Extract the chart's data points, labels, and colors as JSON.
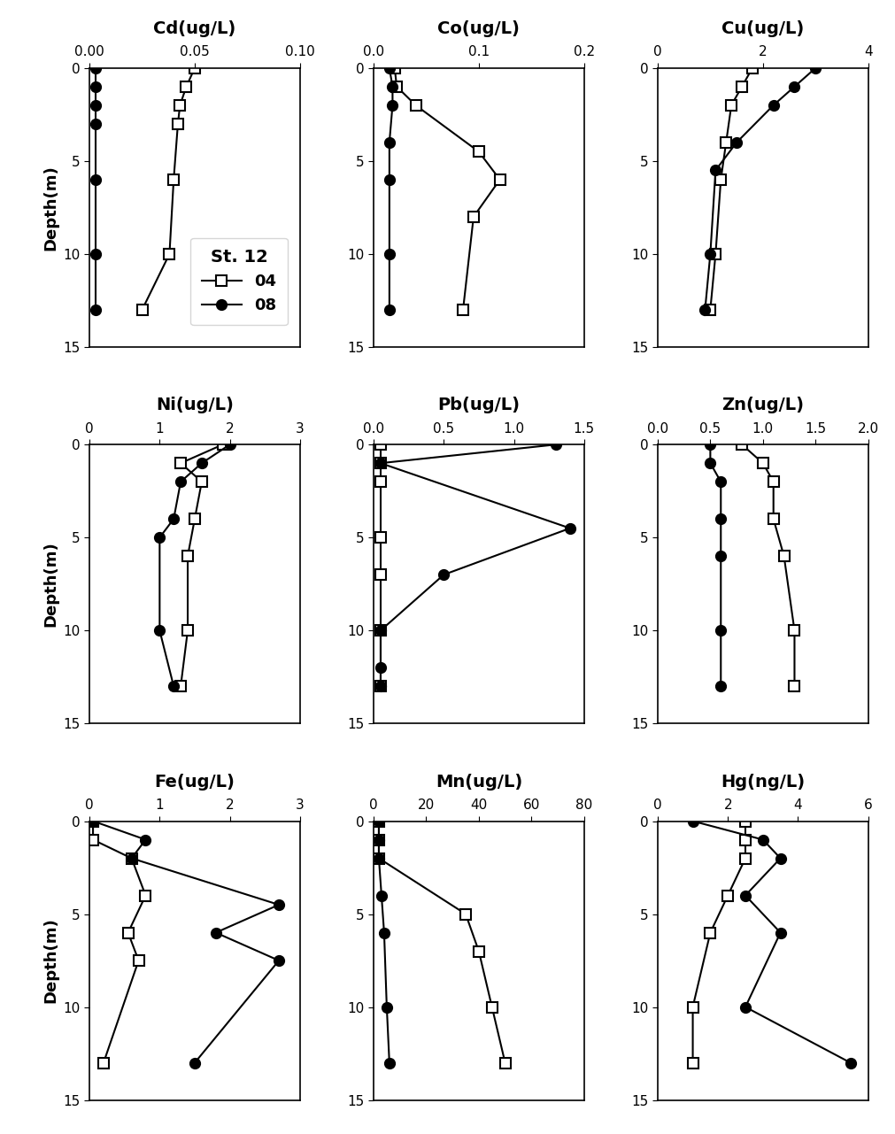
{
  "panels": [
    {
      "title": "Cd(ug/L)",
      "xlim": [
        0.0,
        0.1
      ],
      "xticks": [
        0.0,
        0.05,
        0.1
      ],
      "xticklabels": [
        "0.00",
        "0.05",
        "0.10"
      ],
      "series04": {
        "x": [
          0.05,
          0.046,
          0.043,
          0.042,
          0.04,
          0.038,
          0.025
        ],
        "y": [
          0,
          1,
          2,
          3,
          6,
          10,
          13
        ]
      },
      "series08": {
        "x": [
          0.003,
          0.003,
          0.003,
          0.003,
          0.003,
          0.003,
          0.003
        ],
        "y": [
          0,
          1,
          2,
          3,
          6,
          10,
          13
        ]
      },
      "show_legend": true
    },
    {
      "title": "Co(ug/L)",
      "xlim": [
        0.0,
        0.2
      ],
      "xticks": [
        0.0,
        0.1,
        0.2
      ],
      "xticklabels": [
        "0.0",
        "0.1",
        "0.2"
      ],
      "series04": {
        "x": [
          0.02,
          0.022,
          0.04,
          0.1,
          0.12,
          0.095,
          0.085
        ],
        "y": [
          0,
          1,
          2,
          4.5,
          6,
          8,
          13
        ]
      },
      "series08": {
        "x": [
          0.015,
          0.018,
          0.018,
          0.015,
          0.015,
          0.015,
          0.015
        ],
        "y": [
          0,
          1,
          2,
          4,
          6,
          10,
          13
        ]
      },
      "show_legend": false
    },
    {
      "title": "Cu(ug/L)",
      "xlim": [
        0,
        4
      ],
      "xticks": [
        0,
        2,
        4
      ],
      "xticklabels": [
        "0",
        "2",
        "4"
      ],
      "series04": {
        "x": [
          1.8,
          1.6,
          1.4,
          1.3,
          1.2,
          1.1,
          1.0
        ],
        "y": [
          0,
          1,
          2,
          4,
          6,
          10,
          13
        ]
      },
      "series08": {
        "x": [
          3.0,
          2.6,
          2.2,
          1.5,
          1.1,
          1.0,
          0.9
        ],
        "y": [
          0,
          1,
          2,
          4,
          5.5,
          10,
          13
        ]
      },
      "show_legend": false
    },
    {
      "title": "Ni(ug/L)",
      "xlim": [
        0,
        3
      ],
      "xticks": [
        0,
        1,
        2,
        3
      ],
      "xticklabels": [
        "0",
        "1",
        "2",
        "3"
      ],
      "series04": {
        "x": [
          1.9,
          1.3,
          1.6,
          1.5,
          1.4,
          1.4,
          1.3
        ],
        "y": [
          0,
          1,
          2,
          4,
          6,
          10,
          13
        ]
      },
      "series08": {
        "x": [
          2.0,
          1.6,
          1.3,
          1.2,
          1.0,
          1.0,
          1.2
        ],
        "y": [
          0,
          1,
          2,
          4,
          5,
          10,
          13
        ]
      },
      "show_legend": false
    },
    {
      "title": "Pb(ug/L)",
      "xlim": [
        0.0,
        1.5
      ],
      "xticks": [
        0.0,
        0.5,
        1.0,
        1.5
      ],
      "xticklabels": [
        "0.0",
        "0.5",
        "1.0",
        "1.5"
      ],
      "series04": {
        "x": [
          0.05,
          0.05,
          0.05,
          0.05,
          0.05,
          0.05,
          0.05
        ],
        "y": [
          0,
          1,
          2,
          5,
          7,
          10,
          13
        ]
      },
      "series08": {
        "x": [
          1.3,
          0.05,
          1.4,
          0.5,
          0.05,
          0.05,
          0.05
        ],
        "y": [
          0,
          1,
          4.5,
          7,
          10,
          12,
          13
        ]
      },
      "show_legend": false
    },
    {
      "title": "Zn(ug/L)",
      "xlim": [
        0.0,
        2.0
      ],
      "xticks": [
        0.0,
        0.5,
        1.0,
        1.5,
        2.0
      ],
      "xticklabels": [
        "0.0",
        "0.5",
        "1.0",
        "1.5",
        "2.0"
      ],
      "series04": {
        "x": [
          0.8,
          1.0,
          1.1,
          1.1,
          1.2,
          1.3,
          1.3
        ],
        "y": [
          0,
          1,
          2,
          4,
          6,
          10,
          13
        ]
      },
      "series08": {
        "x": [
          0.5,
          0.5,
          0.6,
          0.6,
          0.6,
          0.6,
          0.6
        ],
        "y": [
          0,
          1,
          2,
          4,
          6,
          10,
          13
        ]
      },
      "show_legend": false
    },
    {
      "title": "Fe(ug/L)",
      "xlim": [
        0,
        3
      ],
      "xticks": [
        0,
        1,
        2,
        3
      ],
      "xticklabels": [
        "0",
        "1",
        "2",
        "3"
      ],
      "series04": {
        "x": [
          0.05,
          0.05,
          0.6,
          0.8,
          0.55,
          0.7,
          0.2
        ],
        "y": [
          0,
          1,
          2,
          4,
          6,
          7.5,
          13
        ]
      },
      "series08": {
        "x": [
          0.05,
          0.8,
          0.6,
          2.7,
          1.8,
          2.7,
          1.5
        ],
        "y": [
          0,
          1,
          2,
          4.5,
          6,
          7.5,
          13
        ]
      },
      "show_legend": false
    },
    {
      "title": "Mn(ug/L)",
      "xlim": [
        0,
        80
      ],
      "xticks": [
        0,
        20,
        40,
        60,
        80
      ],
      "xticklabels": [
        "0",
        "20",
        "40",
        "60",
        "80"
      ],
      "series04": {
        "x": [
          2,
          2,
          2,
          35,
          40,
          45,
          50
        ],
        "y": [
          0,
          1,
          2,
          5,
          7,
          10,
          13
        ]
      },
      "series08": {
        "x": [
          2,
          2,
          2,
          3,
          4,
          5,
          6
        ],
        "y": [
          0,
          1,
          2,
          4,
          6,
          10,
          13
        ]
      },
      "show_legend": false
    },
    {
      "title": "Hg(ng/L)",
      "xlim": [
        0,
        6
      ],
      "xticks": [
        0,
        2,
        4,
        6
      ],
      "xticklabels": [
        "0",
        "2",
        "4",
        "6"
      ],
      "series04": {
        "x": [
          2.5,
          2.5,
          2.5,
          2.0,
          1.5,
          1.0,
          1.0
        ],
        "y": [
          0,
          1,
          2,
          4,
          6,
          10,
          13
        ]
      },
      "series08": {
        "x": [
          1.0,
          3.0,
          3.5,
          2.5,
          3.5,
          2.5,
          5.5
        ],
        "y": [
          0,
          1,
          2,
          4,
          6,
          10,
          13
        ]
      },
      "show_legend": false
    }
  ],
  "ylim": [
    15,
    0
  ],
  "yticks": [
    0,
    5,
    10,
    15
  ],
  "ylabel": "Depth(m)",
  "markersize": 8,
  "linewidth": 1.5,
  "legend_title": "St. 12",
  "legend_04": "04",
  "legend_08": "08",
  "title_fontsize": 14,
  "tick_fontsize": 11,
  "label_fontsize": 13
}
